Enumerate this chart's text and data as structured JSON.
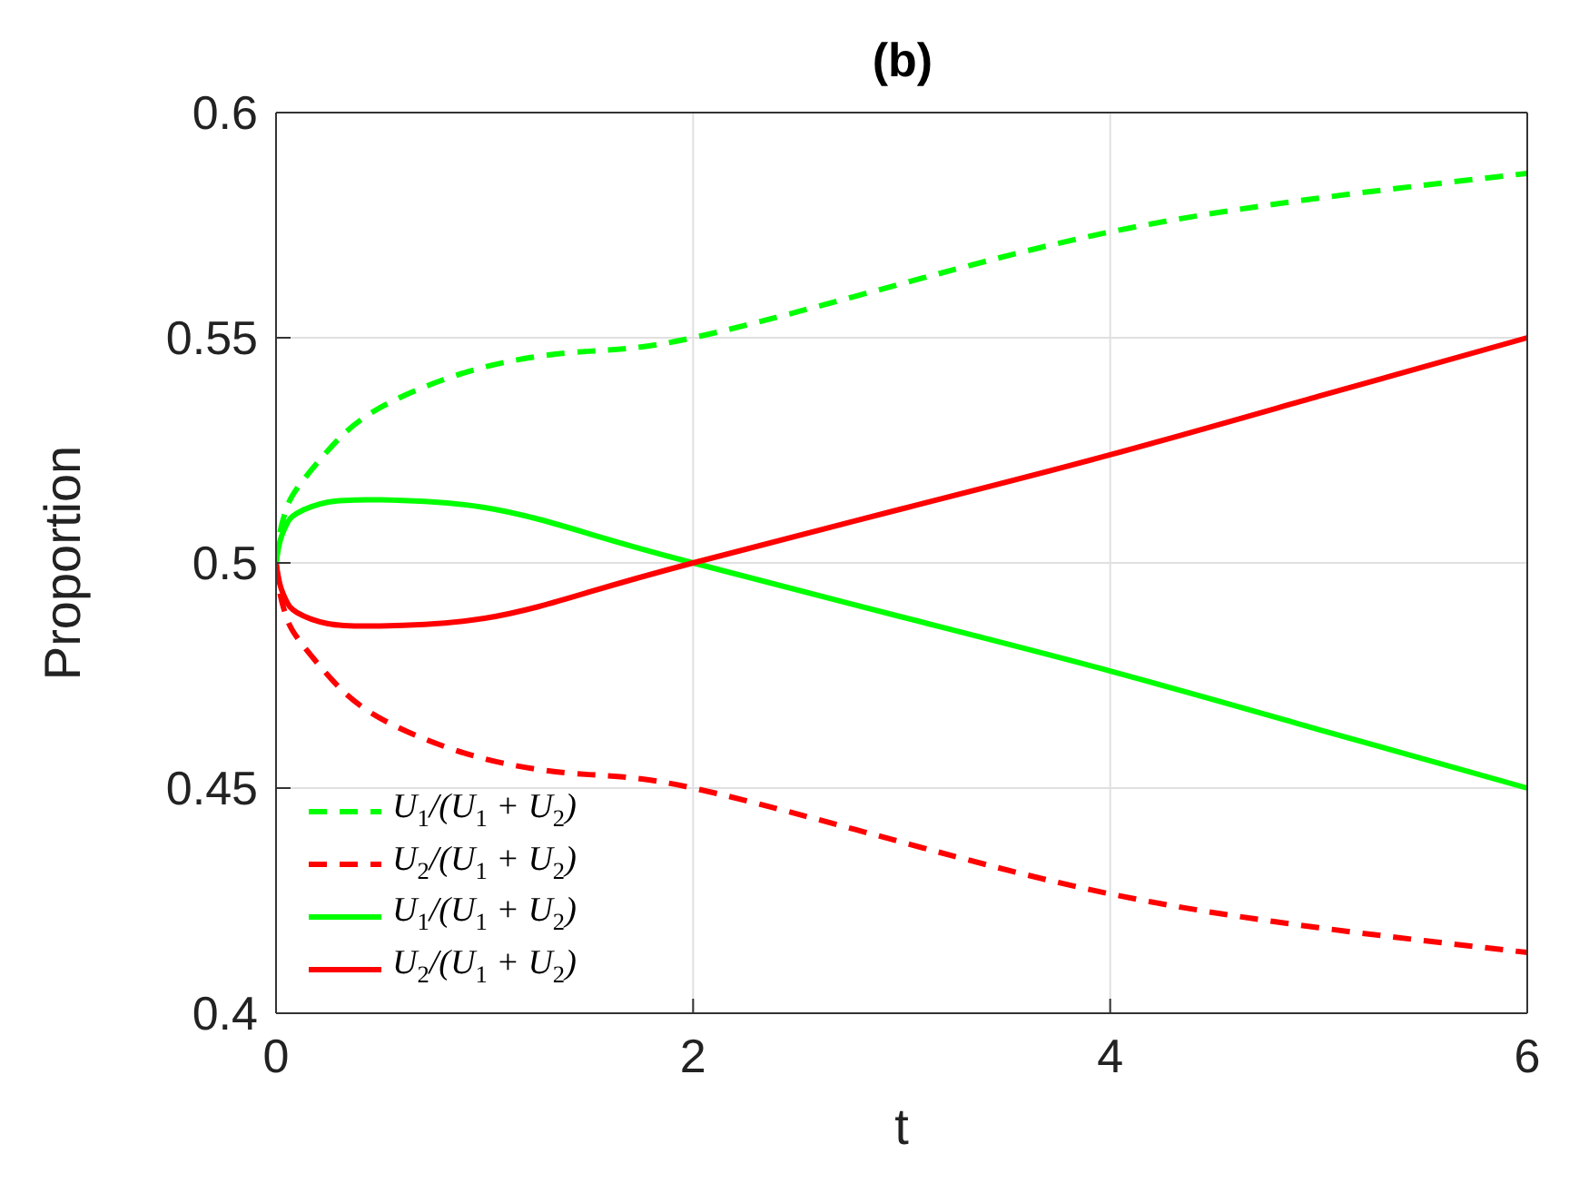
{
  "chart_data": {
    "type": "line",
    "title": "(b)",
    "xlabel": "t",
    "ylabel": "Proportion",
    "x": [
      0,
      0.02,
      0.05,
      0.1,
      0.25,
      0.5,
      1,
      1.5,
      2,
      3,
      4,
      5,
      6
    ],
    "series": [
      {
        "name": "U$_{1}$/(U$_{1}$ + U$_{2}$)",
        "color": "#00ff00",
        "line_style": "dashed",
        "values": [
          0.5,
          0.507,
          0.512,
          0.5165,
          0.525,
          0.5345,
          0.5435,
          0.547,
          0.55,
          0.562,
          0.5735,
          0.581,
          0.5865
        ]
      },
      {
        "name": "U$_{2}$/(U$_{1}$ + U$_{2}$)",
        "color": "#ff0000",
        "line_style": "dashed",
        "values": [
          0.5,
          0.493,
          0.488,
          0.4835,
          0.475,
          0.4655,
          0.4565,
          0.453,
          0.45,
          0.438,
          0.4265,
          0.419,
          0.4135
        ]
      },
      {
        "name": "U$_{1}$/(U$_{1}$ + U$_{2}$)",
        "color": "#00ff00",
        "line_style": "solid",
        "values": [
          0.5,
          0.505,
          0.5085,
          0.511,
          0.5135,
          0.514,
          0.5123,
          0.5065,
          0.5,
          0.488,
          0.476,
          0.463,
          0.45
        ]
      },
      {
        "name": "U$_{2}$/(U$_{1}$ + U$_{2}$)",
        "color": "#ff0000",
        "line_style": "solid",
        "values": [
          0.5,
          0.495,
          0.4915,
          0.489,
          0.4865,
          0.486,
          0.4877,
          0.4935,
          0.5,
          0.512,
          0.524,
          0.537,
          0.55
        ]
      }
    ],
    "xlim": [
      0,
      6
    ],
    "xticks": [
      0,
      2,
      4,
      6
    ],
    "ylim": [
      0.4,
      0.6
    ],
    "yticks": [
      0.4,
      0.45,
      0.5,
      0.55,
      0.6
    ],
    "grid": true,
    "legend": "bottom left",
    "marker": "none"
  }
}
